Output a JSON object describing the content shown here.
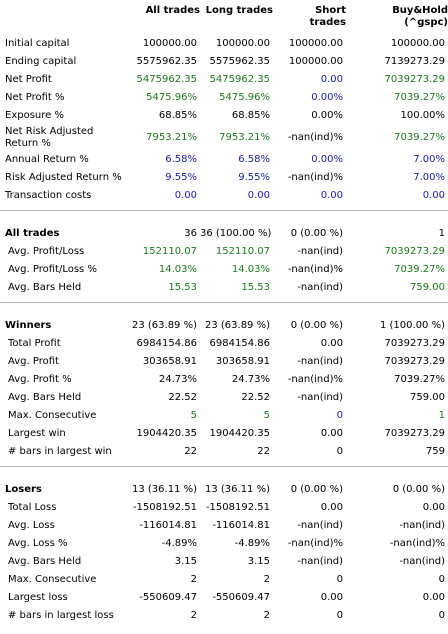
{
  "columns": [
    "",
    "All trades",
    "Long trades",
    "Short\ntrades",
    "Buy&Hold\n(^gspc)"
  ],
  "colors": {
    "green": "#1a7a1a",
    "blue": "#1a1ab4",
    "black": "#000000"
  },
  "summary": [
    {
      "label": "Initial capital",
      "vals": [
        "100000.00",
        "100000.00",
        "100000.00",
        "100000.00"
      ],
      "color": [
        "k",
        "k",
        "k",
        "k"
      ]
    },
    {
      "label": "Ending capital",
      "vals": [
        "5575962.35",
        "5575962.35",
        "100000.00",
        "7139273.29"
      ],
      "color": [
        "k",
        "k",
        "k",
        "k"
      ]
    },
    {
      "label": "Net Profit",
      "vals": [
        "5475962.35",
        "5475962.35",
        "0.00",
        "7039273.29"
      ],
      "color": [
        "g",
        "g",
        "b",
        "g"
      ]
    },
    {
      "label": "Net Profit %",
      "vals": [
        "5475.96%",
        "5475.96%",
        "0.00%",
        "7039.27%"
      ],
      "color": [
        "g",
        "g",
        "b",
        "g"
      ]
    },
    {
      "label": "Exposure %",
      "vals": [
        "68.85%",
        "68.85%",
        "0.00%",
        "100.00%"
      ],
      "color": [
        "k",
        "k",
        "k",
        "k"
      ]
    },
    {
      "label": "Net Risk Adjusted Return %",
      "vals": [
        "7953.21%",
        "7953.21%",
        "-nan(ind)%",
        "7039.27%"
      ],
      "color": [
        "g",
        "g",
        "k",
        "g"
      ],
      "tall": true
    },
    {
      "label": "Annual Return %",
      "vals": [
        "6.58%",
        "6.58%",
        "0.00%",
        "7.00%"
      ],
      "color": [
        "b",
        "b",
        "b",
        "b"
      ]
    },
    {
      "label": "Risk Adjusted Return %",
      "vals": [
        "9.55%",
        "9.55%",
        "-nan(ind)%",
        "7.00%"
      ],
      "color": [
        "b",
        "b",
        "k",
        "b"
      ]
    },
    {
      "label": "Transaction costs",
      "vals": [
        "0.00",
        "0.00",
        "0.00",
        "0.00"
      ],
      "color": [
        "b",
        "b",
        "b",
        "b"
      ]
    }
  ],
  "all_trades": {
    "header": {
      "label": "All trades",
      "vals": [
        "36",
        "36 (100.00 %)",
        "0 (0.00 %)",
        "1"
      ]
    },
    "rows": [
      {
        "label": "Avg. Profit/Loss",
        "vals": [
          "152110.07",
          "152110.07",
          "-nan(ind)",
          "7039273.29"
        ],
        "color": [
          "g",
          "g",
          "k",
          "g"
        ]
      },
      {
        "label": "Avg. Profit/Loss %",
        "vals": [
          "14.03%",
          "14.03%",
          "-nan(ind)%",
          "7039.27%"
        ],
        "color": [
          "g",
          "g",
          "k",
          "g"
        ]
      },
      {
        "label": "Avg. Bars Held",
        "vals": [
          "15.53",
          "15.53",
          "-nan(ind)",
          "759.00"
        ],
        "color": [
          "g",
          "g",
          "k",
          "g"
        ]
      }
    ]
  },
  "winners": {
    "header": {
      "label": "Winners",
      "vals": [
        "23 (63.89 %)",
        "23 (63.89 %)",
        "0 (0.00 %)",
        "1 (100.00 %)"
      ]
    },
    "rows": [
      {
        "label": "Total Profit",
        "vals": [
          "6984154.86",
          "6984154.86",
          "0.00",
          "7039273.29"
        ],
        "color": [
          "k",
          "k",
          "k",
          "k"
        ]
      },
      {
        "label": "Avg. Profit",
        "vals": [
          "303658.91",
          "303658.91",
          "-nan(ind)",
          "7039273.29"
        ],
        "color": [
          "k",
          "k",
          "k",
          "k"
        ]
      },
      {
        "label": "Avg. Profit %",
        "vals": [
          "24.73%",
          "24.73%",
          "-nan(ind)%",
          "7039.27%"
        ],
        "color": [
          "k",
          "k",
          "k",
          "k"
        ]
      },
      {
        "label": "Avg. Bars Held",
        "vals": [
          "22.52",
          "22.52",
          "-nan(ind)",
          "759.00"
        ],
        "color": [
          "k",
          "k",
          "k",
          "k"
        ]
      },
      {
        "label": "Max. Consecutive",
        "vals": [
          "5",
          "5",
          "0",
          "1"
        ],
        "color": [
          "g",
          "g",
          "b",
          "g"
        ]
      },
      {
        "label": "Largest win",
        "vals": [
          "1904420.35",
          "1904420.35",
          "0.00",
          "7039273.29"
        ],
        "color": [
          "k",
          "k",
          "k",
          "k"
        ]
      },
      {
        "label": "# bars in largest win",
        "vals": [
          "22",
          "22",
          "0",
          "759"
        ],
        "color": [
          "k",
          "k",
          "k",
          "k"
        ]
      }
    ]
  },
  "losers": {
    "header": {
      "label": "Losers",
      "vals": [
        "13 (36.11 %)",
        "13 (36.11 %)",
        "0 (0.00 %)",
        "0 (0.00 %)"
      ]
    },
    "rows": [
      {
        "label": "Total Loss",
        "vals": [
          "-1508192.51",
          "-1508192.51",
          "0.00",
          "0.00"
        ],
        "color": [
          "k",
          "k",
          "k",
          "k"
        ]
      },
      {
        "label": "Avg. Loss",
        "vals": [
          "-116014.81",
          "-116014.81",
          "-nan(ind)",
          "-nan(ind)"
        ],
        "color": [
          "k",
          "k",
          "k",
          "k"
        ]
      },
      {
        "label": "Avg. Loss %",
        "vals": [
          "-4.89%",
          "-4.89%",
          "-nan(ind)%",
          "-nan(ind)%"
        ],
        "color": [
          "k",
          "k",
          "k",
          "k"
        ]
      },
      {
        "label": "Avg. Bars Held",
        "vals": [
          "3.15",
          "3.15",
          "-nan(ind)",
          "-nan(ind)"
        ],
        "color": [
          "k",
          "k",
          "k",
          "k"
        ]
      },
      {
        "label": "Max. Consecutive",
        "vals": [
          "2",
          "2",
          "0",
          "0"
        ],
        "color": [
          "k",
          "k",
          "k",
          "k"
        ]
      },
      {
        "label": "Largest loss",
        "vals": [
          "-550609.47",
          "-550609.47",
          "0.00",
          "0.00"
        ],
        "color": [
          "k",
          "k",
          "k",
          "k"
        ]
      },
      {
        "label": "# bars in largest loss",
        "vals": [
          "2",
          "2",
          "0",
          "0"
        ],
        "color": [
          "k",
          "k",
          "k",
          "k"
        ]
      }
    ]
  }
}
